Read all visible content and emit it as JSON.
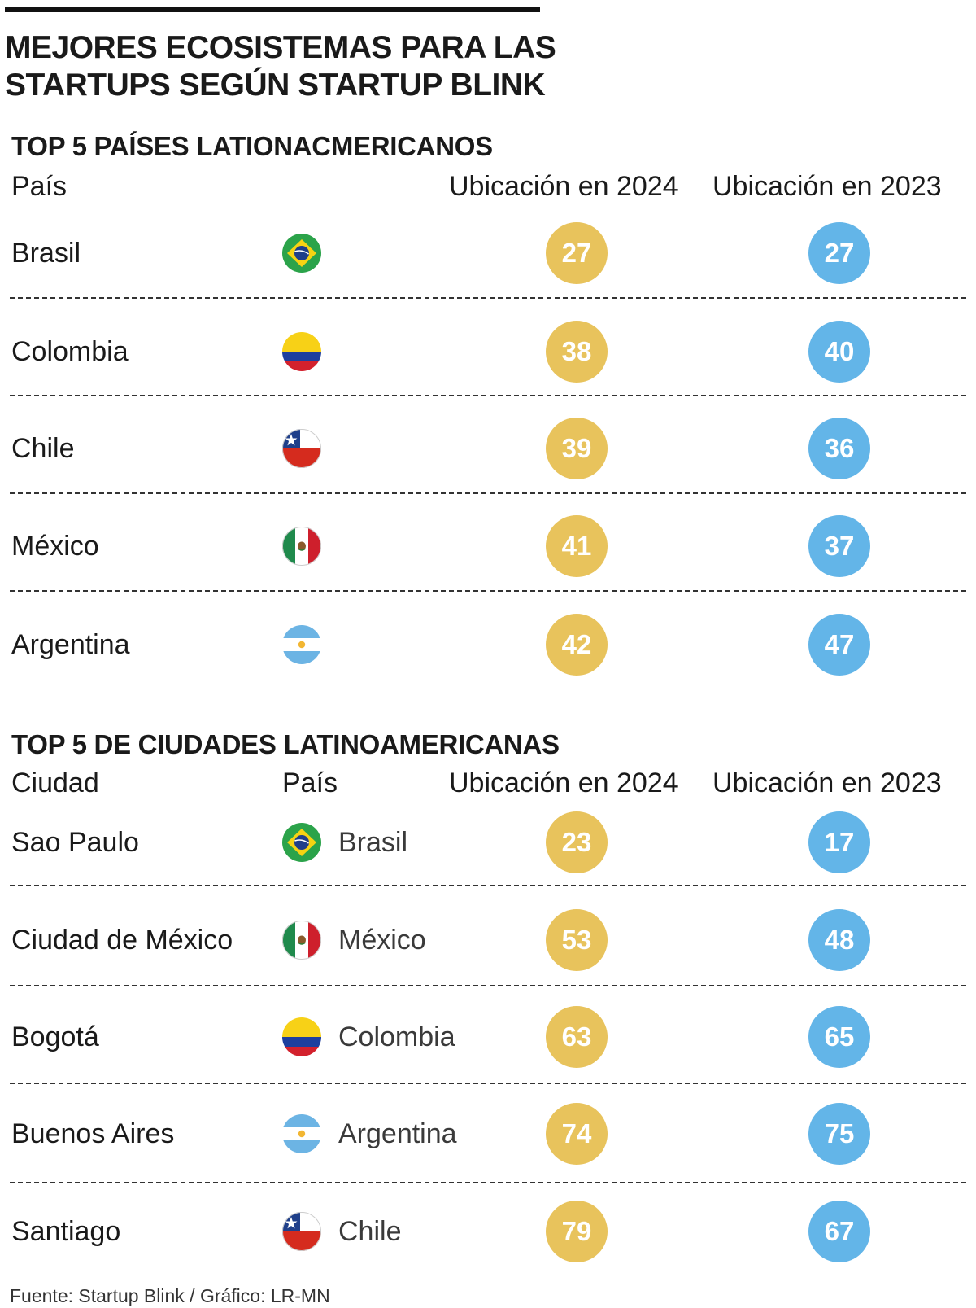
{
  "title": "MEJORES ECOSISTEMAS PARA LAS STARTUPS SEGÚN STARTUP BLINK",
  "colors": {
    "y2024": "#e8c35c",
    "y2023": "#63b5e8"
  },
  "chart_data": [
    {
      "type": "table",
      "title": "TOP 5 PAÍSES LATIONACMERICANOS",
      "columns": [
        "País",
        "Ubicación en 2024",
        "Ubicación en 2023"
      ],
      "rows": [
        {
          "name": "Brasil",
          "flag": "brazil-flag-icon",
          "rank_2024": "27",
          "rank_2023": "27"
        },
        {
          "name": "Colombia",
          "flag": "colombia-flag-icon",
          "rank_2024": "38",
          "rank_2023": "40"
        },
        {
          "name": "Chile",
          "flag": "chile-flag-icon",
          "rank_2024": "39",
          "rank_2023": "36"
        },
        {
          "name": "México",
          "flag": "mexico-flag-icon",
          "rank_2024": "41",
          "rank_2023": "37"
        },
        {
          "name": "Argentina",
          "flag": "argentina-flag-icon",
          "rank_2024": "42",
          "rank_2023": "47"
        }
      ]
    },
    {
      "type": "table",
      "title": "TOP 5 DE CIUDADES LATINOAMERICANAS",
      "columns": [
        "Ciudad",
        "País",
        "Ubicación en 2024",
        "Ubicación en 2023"
      ],
      "rows": [
        {
          "name": "Sao Paulo",
          "country": "Brasil",
          "flag": "brazil-flag-icon",
          "rank_2024": "23",
          "rank_2023": "17"
        },
        {
          "name": "Ciudad de México",
          "country": "México",
          "flag": "mexico-flag-icon",
          "rank_2024": "53",
          "rank_2023": "48"
        },
        {
          "name": "Bogotá",
          "country": "Colombia",
          "flag": "colombia-flag-icon",
          "rank_2024": "63",
          "rank_2023": "65"
        },
        {
          "name": "Buenos Aires",
          "country": "Argentina",
          "flag": "argentina-flag-icon",
          "rank_2024": "74",
          "rank_2023": "75"
        },
        {
          "name": "Santiago",
          "country": "Chile",
          "flag": "chile-flag-icon",
          "rank_2024": "79",
          "rank_2023": "67"
        }
      ]
    }
  ],
  "source": "Fuente: Startup Blink / Gráfico: LR-MN"
}
